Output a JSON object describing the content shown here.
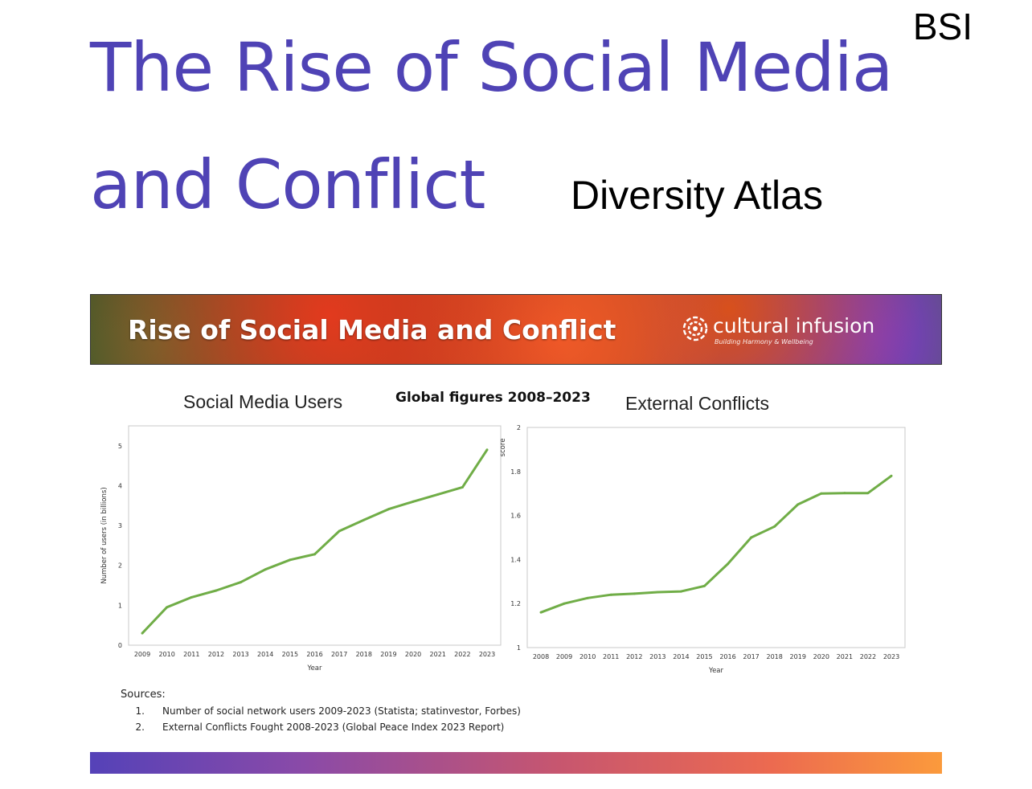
{
  "header": {
    "title_line1": "The Rise of Social Media",
    "title_line2": "and Conflict",
    "corner_tag": "BSI",
    "subtitle": "Diversity Atlas"
  },
  "banner": {
    "title": "Rise of Social Media and Conflict",
    "logo_text": "cultural infusion",
    "logo_tagline": "Building Harmony & Wellbeing"
  },
  "global_label": "Global figures 2008–2023",
  "colors": {
    "title": "#4f43b5",
    "line": "#70ad47"
  },
  "chart_data": [
    {
      "type": "line",
      "title": "Social Media Users",
      "xlabel": "Year",
      "ylabel": "Number of users (in billions)",
      "x": [
        "2009",
        "2010",
        "2011",
        "2012",
        "2013",
        "2014",
        "2015",
        "2016",
        "2017",
        "2018",
        "2019",
        "2020",
        "2021",
        "2022",
        "2023"
      ],
      "series": [
        {
          "values": [
            0.3,
            0.95,
            1.2,
            1.37,
            1.58,
            1.9,
            2.14,
            2.28,
            2.86,
            3.14,
            3.41,
            3.6,
            3.78,
            3.96,
            4.9
          ]
        }
      ],
      "yticks": [
        "0",
        "1",
        "2",
        "3",
        "4",
        "5"
      ],
      "ylim": [
        0,
        5.5
      ],
      "grid": false
    },
    {
      "type": "line",
      "title": "External Conflicts",
      "xlabel": "Year",
      "ylabel": "score",
      "x": [
        "2008",
        "2009",
        "2010",
        "2011",
        "2012",
        "2013",
        "2014",
        "2015",
        "2016",
        "2017",
        "2018",
        "2019",
        "2020",
        "2021",
        "2022",
        "2023"
      ],
      "series": [
        {
          "values": [
            1.16,
            1.2,
            1.225,
            1.24,
            1.245,
            1.252,
            1.255,
            1.28,
            1.38,
            1.5,
            1.55,
            1.65,
            1.7,
            1.702,
            1.702,
            1.78
          ]
        }
      ],
      "yticks": [
        "1",
        "1.2",
        "1.4",
        "1.6",
        "1.8",
        "2"
      ],
      "ylim": [
        1,
        2
      ],
      "grid": false
    }
  ],
  "sources": {
    "label": "Sources:",
    "items": [
      {
        "num": "1.",
        "text": "Number of social network users 2009-2023 (Statista; statinvestor, Forbes)"
      },
      {
        "num": "2.",
        "text": "External Conflicts Fought 2008-2023 (Global Peace Index 2023 Report)"
      }
    ]
  }
}
